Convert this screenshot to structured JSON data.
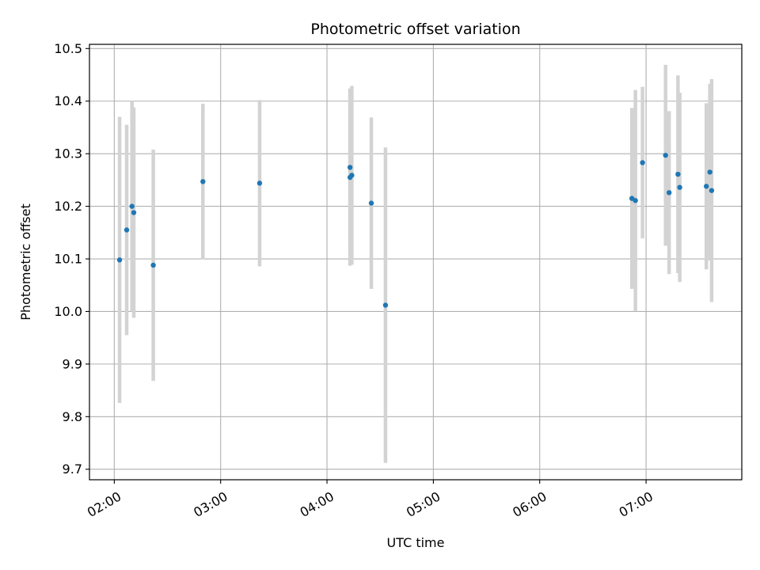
{
  "chart_data": {
    "type": "scatter",
    "title": "Photometric offset variation",
    "xlabel": "UTC time",
    "ylabel": "Photometric offset",
    "x_ticks": [
      "02:00",
      "03:00",
      "04:00",
      "05:00",
      "06:00",
      "07:00"
    ],
    "y_ticks": [
      "9.7",
      "9.8",
      "9.9",
      "10.0",
      "10.1",
      "10.2",
      "10.3",
      "10.4",
      "10.5"
    ],
    "xlim": [
      "01:46",
      "07:54"
    ],
    "ylim": [
      9.68,
      10.508
    ],
    "grid": true,
    "colors": {
      "point": "#1f77b4",
      "errorbar": "#d3d3d3",
      "grid": "#b0b0b0"
    },
    "points": [
      {
        "t": "02:03",
        "y": 10.098,
        "err": 0.272
      },
      {
        "t": "02:07",
        "y": 10.155,
        "err": 0.2
      },
      {
        "t": "02:10",
        "y": 10.2,
        "err": 0.2
      },
      {
        "t": "02:11",
        "y": 10.188,
        "err": 0.2
      },
      {
        "t": "02:22",
        "y": 10.088,
        "err": 0.22
      },
      {
        "t": "02:50",
        "y": 10.247,
        "err": 0.148
      },
      {
        "t": "03:22",
        "y": 10.244,
        "err": 0.158
      },
      {
        "t": "04:13",
        "y": 10.255,
        "err": 0.168
      },
      {
        "t": "04:13",
        "y": 10.274,
        "err": 0.15
      },
      {
        "t": "04:14",
        "y": 10.259,
        "err": 0.17
      },
      {
        "t": "04:25",
        "y": 10.206,
        "err": 0.163
      },
      {
        "t": "04:33",
        "y": 10.012,
        "err": 0.3
      },
      {
        "t": "06:52",
        "y": 10.215,
        "err": 0.172
      },
      {
        "t": "06:54",
        "y": 10.211,
        "err": 0.21
      },
      {
        "t": "06:58",
        "y": 10.283,
        "err": 0.144
      },
      {
        "t": "07:11",
        "y": 10.297,
        "err": 0.172
      },
      {
        "t": "07:13",
        "y": 10.226,
        "err": 0.155
      },
      {
        "t": "07:18",
        "y": 10.261,
        "err": 0.188
      },
      {
        "t": "07:19",
        "y": 10.236,
        "err": 0.18
      },
      {
        "t": "07:34",
        "y": 10.238,
        "err": 0.158
      },
      {
        "t": "07:36",
        "y": 10.265,
        "err": 0.168
      },
      {
        "t": "07:37",
        "y": 10.23,
        "err": 0.212
      }
    ]
  }
}
